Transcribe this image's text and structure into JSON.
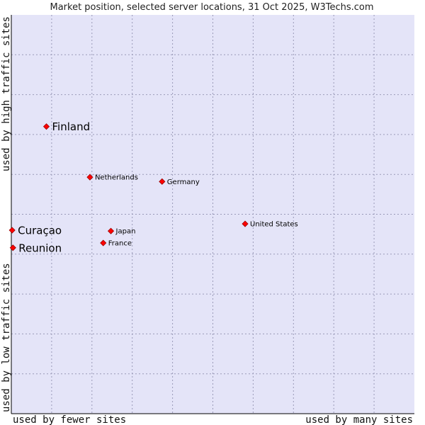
{
  "chart_data": {
    "type": "scatter",
    "title": "Market position, selected server locations, 31 Oct 2025, W3Techs.com",
    "xlabel_low": "used by fewer sites",
    "xlabel_high": "used by many sites",
    "ylabel_low": "used by low traffic sites",
    "ylabel_high": "used by high traffic sites",
    "xlim": [
      0,
      10
    ],
    "ylim": [
      0,
      10
    ],
    "grid": true,
    "colors": {
      "plot_bg": "#e4e4f8",
      "grid": "#9a9ab8",
      "point": "#ff0000",
      "point_edge": "#990000",
      "axis": "#000000"
    },
    "points": [
      {
        "name": "Finland",
        "x": 0.87,
        "y": 7.2,
        "size": "large"
      },
      {
        "name": "Netherlands",
        "x": 1.95,
        "y": 5.93,
        "size": "small"
      },
      {
        "name": "Germany",
        "x": 3.74,
        "y": 5.82,
        "size": "small"
      },
      {
        "name": "United States",
        "x": 5.8,
        "y": 4.76,
        "size": "small"
      },
      {
        "name": "Curaçao",
        "x": 0.02,
        "y": 4.6,
        "size": "large"
      },
      {
        "name": "Japan",
        "x": 2.47,
        "y": 4.58,
        "size": "small"
      },
      {
        "name": "France",
        "x": 2.28,
        "y": 4.28,
        "size": "small"
      },
      {
        "name": "Reunion",
        "x": 0.04,
        "y": 4.16,
        "size": "large"
      }
    ]
  }
}
